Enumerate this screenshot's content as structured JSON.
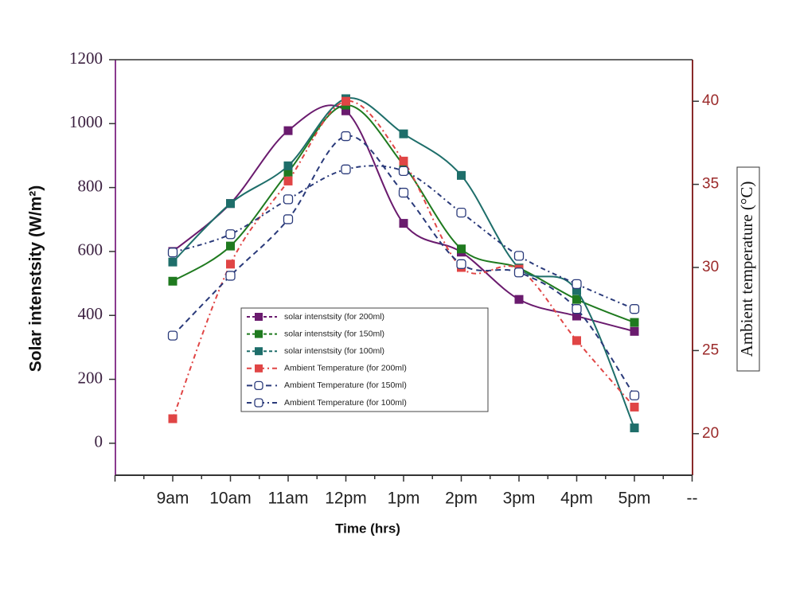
{
  "chart_data": {
    "type": "line",
    "x_label": "Time (hrs)",
    "y_label": "Solar intenstsity (W/m²)",
    "y2_label": "Ambient temperature (°C)",
    "categories": [
      "9am",
      "10am",
      "11am",
      "12pm",
      "1pm",
      "2pm",
      "3pm",
      "4pm",
      "5pm",
      "--"
    ],
    "ylim": [
      -100,
      1200
    ],
    "yticks": [
      0,
      200,
      400,
      600,
      800,
      1000,
      1200
    ],
    "y2lim": [
      17.5,
      42.5
    ],
    "y2ticks": [
      20,
      25,
      30,
      35,
      40
    ],
    "series": [
      {
        "name": "solar intenstsity (for 200ml)",
        "color": "#6a1b6e",
        "marker": "square",
        "dash": "solid",
        "values": [
          600,
          750,
          978,
          1040,
          688,
          598,
          450,
          398,
          350,
          null
        ]
      },
      {
        "name": "solar intenstsity (for 150ml)",
        "color": "#1f7a1f",
        "marker": "square",
        "dash": "solid",
        "values": [
          507,
          617,
          848,
          1058,
          870,
          608,
          548,
          450,
          378,
          null
        ]
      },
      {
        "name": "solar intenstsity (for 100ml)",
        "color": "#1e6e6a",
        "marker": "square",
        "dash": "solid",
        "values": [
          567,
          750,
          868,
          1078,
          968,
          838,
          548,
          478,
          48,
          null
        ]
      },
      {
        "name": "Ambient Temperature (for 200ml)",
        "color": "#e04545",
        "marker": "square",
        "dash": "dashdot",
        "axis": "y2",
        "values": [
          20.9,
          30.2,
          35.2,
          40.0,
          36.4,
          30.0,
          29.9,
          25.6,
          21.6,
          null
        ]
      },
      {
        "name": "Ambient Temperature (for 150ml)",
        "color": "#2a3a7a",
        "marker": "open",
        "dash": "dash",
        "axis": "y2",
        "values": [
          25.9,
          29.5,
          32.9,
          37.9,
          34.5,
          30.2,
          29.7,
          27.5,
          22.3,
          null
        ]
      },
      {
        "name": "Ambient Temperature (for 100ml)",
        "color": "#2a3a7a",
        "marker": "open",
        "dash": "dashdot",
        "axis": "y2",
        "values": [
          30.9,
          32.0,
          34.1,
          35.9,
          35.8,
          33.3,
          30.7,
          29.0,
          27.5,
          null
        ]
      }
    ]
  }
}
